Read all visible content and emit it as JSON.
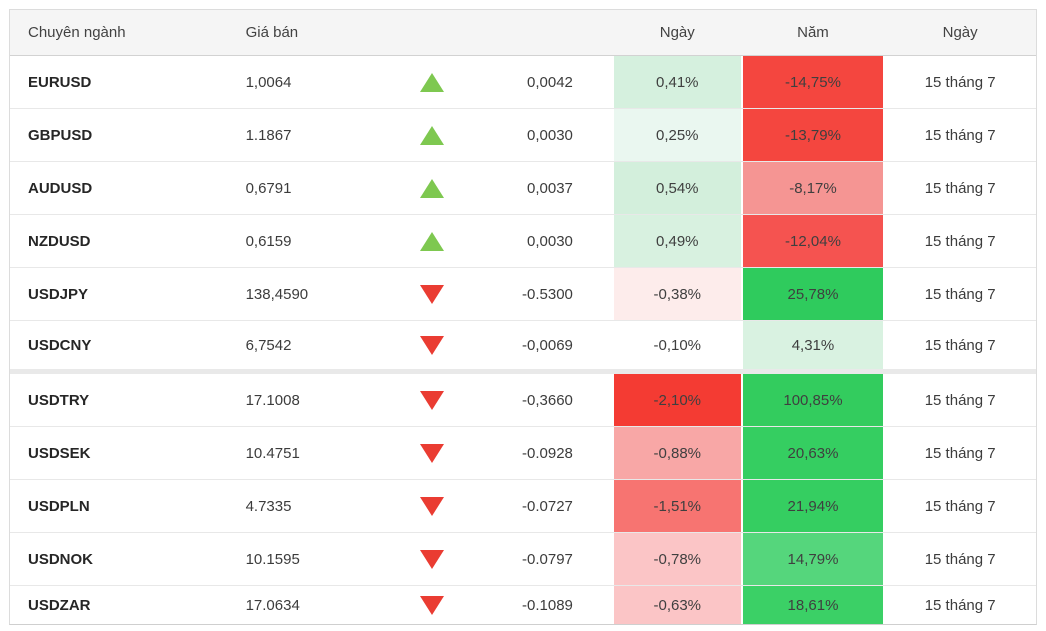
{
  "table": {
    "headers": {
      "pair": "Chuyên ngành",
      "price": "Giá bán",
      "day": "Ngày",
      "year": "Năm",
      "date": "Ngày"
    },
    "colors": {
      "up_triangle": "#7ec850",
      "down_triangle": "#ea3c32",
      "header_bg": "#f5f5f5",
      "strong_red": "#f4463f",
      "strong_green": "#2fcb5d"
    },
    "groups": [
      {
        "rows": [
          {
            "pair": "EURUSD",
            "price": "1,0064",
            "direction": "up",
            "change": "0,0042",
            "day": {
              "text": "0,41%",
              "bg": "#d5f0de"
            },
            "year": {
              "text": "-14,75%",
              "bg": "#f4463f"
            },
            "date": "15 tháng 7"
          },
          {
            "pair": "GBPUSD",
            "price": "1.1867",
            "direction": "up",
            "change": "0,0030",
            "day": {
              "text": "0,25%",
              "bg": "#eaf7f0"
            },
            "year": {
              "text": "-13,79%",
              "bg": "#f4463f"
            },
            "date": "15 tháng 7"
          },
          {
            "pair": "AUDUSD",
            "price": "0,6791",
            "direction": "up",
            "change": "0,0037",
            "day": {
              "text": "0,54%",
              "bg": "#d3efdc"
            },
            "year": {
              "text": "-8,17%",
              "bg": "#f59593"
            },
            "date": "15 tháng 7"
          },
          {
            "pair": "NZDUSD",
            "price": "0,6159",
            "direction": "up",
            "change": "0,0030",
            "day": {
              "text": "0,49%",
              "bg": "#d8f1e0"
            },
            "year": {
              "text": "-12,04%",
              "bg": "#f55350"
            },
            "date": "15 tháng 7"
          },
          {
            "pair": "USDJPY",
            "price": "138,4590",
            "direction": "down",
            "change": "-0.5300",
            "day": {
              "text": "-0,38%",
              "bg": "#fdeceb"
            },
            "year": {
              "text": "25,78%",
              "bg": "#2fcb5d"
            },
            "date": "15 tháng 7"
          },
          {
            "pair": "USDCNY",
            "price": "6,7542",
            "direction": "down",
            "change": "-0,0069",
            "day": {
              "text": "-0,10%",
              "bg": "#ffffff"
            },
            "year": {
              "text": "4,31%",
              "bg": "#d9f2e1"
            },
            "date": "15 tháng 7"
          }
        ]
      },
      {
        "rows": [
          {
            "pair": "USDTRY",
            "price": "17.1008",
            "direction": "down",
            "change": "-0,3660",
            "day": {
              "text": "-2,10%",
              "bg": "#f43b33"
            },
            "year": {
              "text": "100,85%",
              "bg": "#33cc5e"
            },
            "date": "15 tháng 7"
          },
          {
            "pair": "USDSEK",
            "price": "10.4751",
            "direction": "down",
            "change": "-0.0928",
            "day": {
              "text": "-0,88%",
              "bg": "#f8a7a6"
            },
            "year": {
              "text": "20,63%",
              "bg": "#35ce61"
            },
            "date": "15 tháng 7"
          },
          {
            "pair": "USDPLN",
            "price": "4.7335",
            "direction": "down",
            "change": "-0.0727",
            "day": {
              "text": "-1,51%",
              "bg": "#f77471"
            },
            "year": {
              "text": "21,94%",
              "bg": "#35ce61"
            },
            "date": "15 tháng 7"
          },
          {
            "pair": "USDNOK",
            "price": "10.1595",
            "direction": "down",
            "change": "-0.0797",
            "day": {
              "text": "-0,78%",
              "bg": "#fbc5c6"
            },
            "year": {
              "text": "14,79%",
              "bg": "#55d67c"
            },
            "date": "15 tháng 7"
          },
          {
            "pair": "USDZAR",
            "price": "17.0634",
            "direction": "down",
            "change": "-0.1089",
            "day": {
              "text": "-0,63%",
              "bg": "#fbc5c6"
            },
            "year": {
              "text": "18,61%",
              "bg": "#3bd066"
            },
            "date": "15 tháng 7"
          }
        ]
      }
    ]
  }
}
